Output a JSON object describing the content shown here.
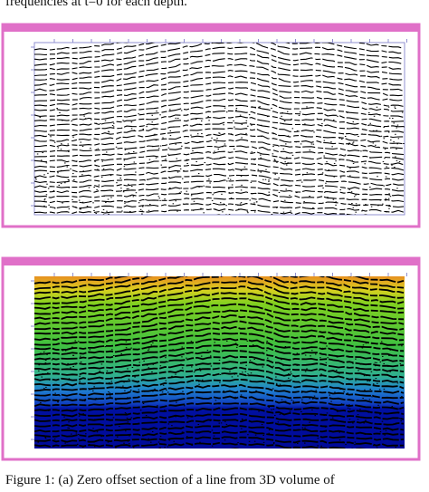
{
  "text": {
    "top_line": "frequencies at t=0 for each depth.",
    "caption": "Figure 1: (a) Zero offset section of a line from 3D volume of"
  }
}
